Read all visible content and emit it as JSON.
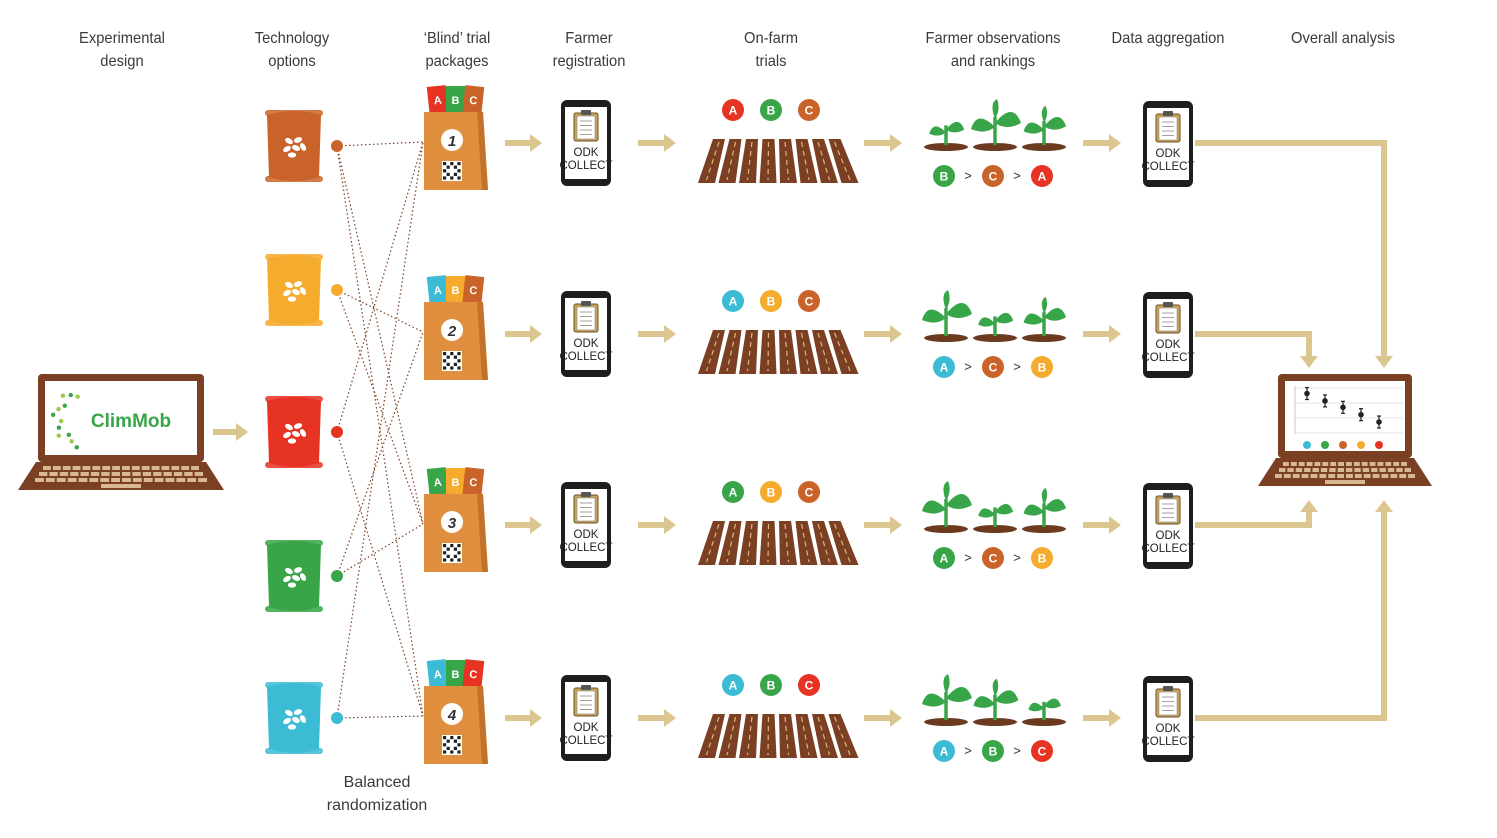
{
  "headers": [
    {
      "id": "experimental-design",
      "lines": [
        "Experimental",
        "design"
      ]
    },
    {
      "id": "technology-options",
      "lines": [
        "Technology",
        "options"
      ]
    },
    {
      "id": "blind-trial-packages",
      "lines": [
        "‘Blind’ trial",
        "packages"
      ]
    },
    {
      "id": "farmer-registration",
      "lines": [
        "Farmer",
        "registration"
      ]
    },
    {
      "id": "on-farm-trials",
      "lines": [
        "On-farm",
        "trials"
      ]
    },
    {
      "id": "farmer-observations",
      "lines": [
        "Farmer observations",
        "and rankings"
      ]
    },
    {
      "id": "data-aggregation",
      "lines": [
        "Data aggregation"
      ]
    },
    {
      "id": "overall-analysis",
      "lines": [
        "Overall analysis"
      ]
    }
  ],
  "footer_label": [
    "Balanced",
    "randomization"
  ],
  "logo_text": "ClimMob",
  "device_label": [
    "ODK",
    "COLLECT"
  ],
  "package_letters": [
    "A",
    "B",
    "C"
  ],
  "rank_separator": ">",
  "colors": {
    "A": "#e63323",
    "B": "#38a548",
    "C": "#c9632a",
    "cyan": "#3cbcd4",
    "yellow": "#f4ab2e",
    "arrow": "#dcc690",
    "brown": "#7b3f24",
    "bag": "#e08f3e"
  },
  "technologies": [
    {
      "color": "#c9632a"
    },
    {
      "color": "#f4ab2e"
    },
    {
      "color": "#e63323"
    },
    {
      "color": "#38a548"
    },
    {
      "color": "#3cbcd4"
    }
  ],
  "packages": [
    {
      "number": "1",
      "tags": [
        "#e63323",
        "#38a548",
        "#c9632a"
      ]
    },
    {
      "number": "2",
      "tags": [
        "#3cbcd4",
        "#f4ab2e",
        "#c9632a"
      ]
    },
    {
      "number": "3",
      "tags": [
        "#38a548",
        "#f4ab2e",
        "#c9632a"
      ]
    },
    {
      "number": "4",
      "tags": [
        "#3cbcd4",
        "#38a548",
        "#e63323"
      ]
    }
  ],
  "trials": [
    {
      "plots": [
        "#e63323",
        "#38a548",
        "#c9632a"
      ],
      "plants": [
        0.7,
        1.0,
        0.85
      ],
      "ranking": [
        {
          "l": "B",
          "c": "#38a548"
        },
        {
          "l": "C",
          "c": "#c9632a"
        },
        {
          "l": "A",
          "c": "#e63323"
        }
      ]
    },
    {
      "plots": [
        "#3cbcd4",
        "#f4ab2e",
        "#c9632a"
      ],
      "plants": [
        1.0,
        0.7,
        0.85
      ],
      "ranking": [
        {
          "l": "A",
          "c": "#3cbcd4"
        },
        {
          "l": "C",
          "c": "#c9632a"
        },
        {
          "l": "B",
          "c": "#f4ab2e"
        }
      ]
    },
    {
      "plots": [
        "#38a548",
        "#f4ab2e",
        "#c9632a"
      ],
      "plants": [
        1.0,
        0.7,
        0.85
      ],
      "ranking": [
        {
          "l": "A",
          "c": "#38a548"
        },
        {
          "l": "C",
          "c": "#c9632a"
        },
        {
          "l": "B",
          "c": "#f4ab2e"
        }
      ]
    },
    {
      "plots": [
        "#3cbcd4",
        "#38a548",
        "#e63323"
      ],
      "plants": [
        1.0,
        0.9,
        0.65
      ],
      "ranking": [
        {
          "l": "A",
          "c": "#3cbcd4"
        },
        {
          "l": "B",
          "c": "#38a548"
        },
        {
          "l": "C",
          "c": "#e63323"
        }
      ]
    }
  ],
  "analysis_points": [
    {
      "value": 0.88,
      "color": "#3cbcd4"
    },
    {
      "value": 0.72,
      "color": "#38a548"
    },
    {
      "value": 0.58,
      "color": "#c9632a"
    },
    {
      "value": 0.42,
      "color": "#f4ab2e"
    },
    {
      "value": 0.26,
      "color": "#e63323"
    }
  ]
}
